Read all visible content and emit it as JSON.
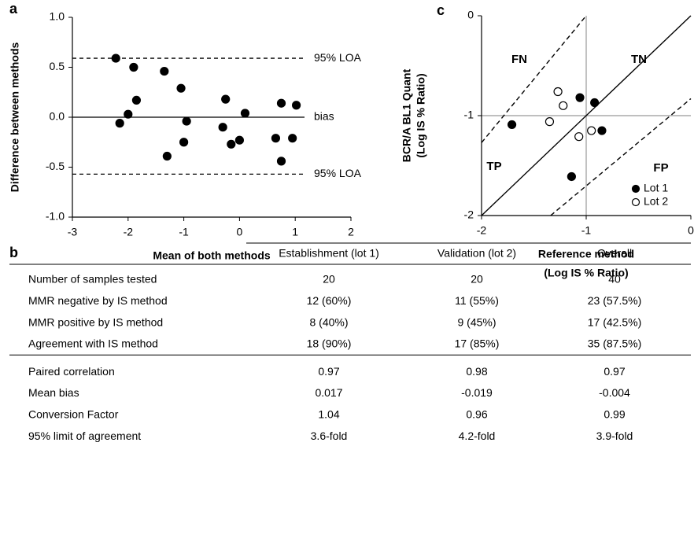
{
  "chart_data": [
    {
      "panel_label": "a",
      "type": "scatter",
      "x_label": "Mean of both methods",
      "y_label": "Difference between methods",
      "x": [
        -2.22,
        -2.15,
        -2.0,
        -1.9,
        -1.85,
        -1.35,
        -1.3,
        -1.05,
        -0.95,
        -1.0,
        -0.3,
        -0.25,
        -0.15,
        0.0,
        0.1,
        0.65,
        0.75,
        0.75,
        0.95,
        1.02
      ],
      "values": [
        0.59,
        -0.06,
        0.03,
        0.5,
        0.17,
        0.46,
        -0.39,
        0.29,
        -0.04,
        -0.25,
        -0.1,
        0.18,
        -0.27,
        -0.23,
        0.04,
        -0.21,
        -0.44,
        0.14,
        -0.21,
        0.12
      ],
      "color": "#000000",
      "xlim": [
        -3,
        2
      ],
      "ylim": [
        -1,
        1
      ],
      "xticks": [
        -3,
        -2,
        -1,
        0,
        1,
        2
      ],
      "yticks": [
        {
          "value": -1,
          "label": "-1.0"
        },
        {
          "value": -0.5,
          "label": "-0.5"
        },
        {
          "value": 0,
          "label": "0.0"
        },
        {
          "value": 0.5,
          "label": "0.5"
        },
        {
          "value": 1,
          "label": "1.0"
        }
      ],
      "reference_lines": [
        {
          "value": 0.59,
          "label": "95% LOA",
          "style": "dashed"
        },
        {
          "value": 0,
          "label": "bias",
          "style": "solid"
        },
        {
          "value": -0.57,
          "label": "95% LOA",
          "style": "dashed"
        }
      ]
    },
    {
      "panel_label": "c",
      "type": "scatter",
      "x_label": [
        "Reference method",
        "(Log IS % Ratio)"
      ],
      "y_label": [
        "BCR/A BL1 Quant",
        "(Log IS % Ratio)"
      ],
      "xlim": [
        -2,
        0
      ],
      "ylim": [
        -2,
        0
      ],
      "xticks": [
        -2,
        -1,
        0
      ],
      "yticks": [
        -2,
        -1,
        0
      ],
      "series": [
        {
          "name": "Lot 1",
          "color": "#000000",
          "marker": "filled",
          "x": [
            -1.71,
            -1.06,
            -0.92,
            -0.85,
            -1.14
          ],
          "values": [
            -1.09,
            -0.82,
            -0.87,
            -1.15,
            -1.61
          ]
        },
        {
          "name": "Lot 2",
          "color": "#000000",
          "marker": "open",
          "x": [
            -1.27,
            -1.22,
            -1.35,
            -1.07,
            -0.95
          ],
          "values": [
            -0.76,
            -0.9,
            -1.06,
            -1.21,
            -1.15
          ]
        }
      ],
      "lines": [
        {
          "style": "solid",
          "x": [
            -2,
            0
          ],
          "y": [
            -2,
            0
          ]
        },
        {
          "style": "dashed",
          "x": [
            -2,
            -1
          ],
          "y": [
            -1.27,
            0
          ]
        },
        {
          "style": "dashed",
          "x": [
            -1.34,
            0
          ],
          "y": [
            -2,
            -0.83
          ]
        }
      ],
      "crosshair": {
        "x": -1,
        "y": -1
      },
      "region_labels": [
        "FN",
        "TN",
        "TP",
        "FP"
      ],
      "legend": "lower right"
    }
  ],
  "table": {
    "panel_label": "b",
    "columns": [
      "Establishment (lot 1)",
      "Validation (lot 2)",
      "Overall"
    ],
    "row_groups": [
      [
        [
          "Number of samples tested",
          "20",
          "20",
          "40"
        ],
        [
          "MMR negative by IS method",
          "12 (60%)",
          "11 (55%)",
          "23 (57.5%)"
        ],
        [
          "MMR positive by IS method",
          "8 (40%)",
          "9 (45%)",
          "17 (42.5%)"
        ],
        [
          "Agreement with IS method",
          "18 (90%)",
          "17 (85%)",
          "35 (87.5%)"
        ]
      ],
      [
        [
          "Paired correlation",
          "0.97",
          "0.98",
          "0.97"
        ],
        [
          "Mean bias",
          "0.017",
          "-0.019",
          "-0.004"
        ],
        [
          "Conversion Factor",
          "1.04",
          "0.96",
          "0.99"
        ],
        [
          "95% limit of agreement",
          "3.6-fold",
          "4.2-fold",
          "3.9-fold"
        ]
      ]
    ]
  }
}
